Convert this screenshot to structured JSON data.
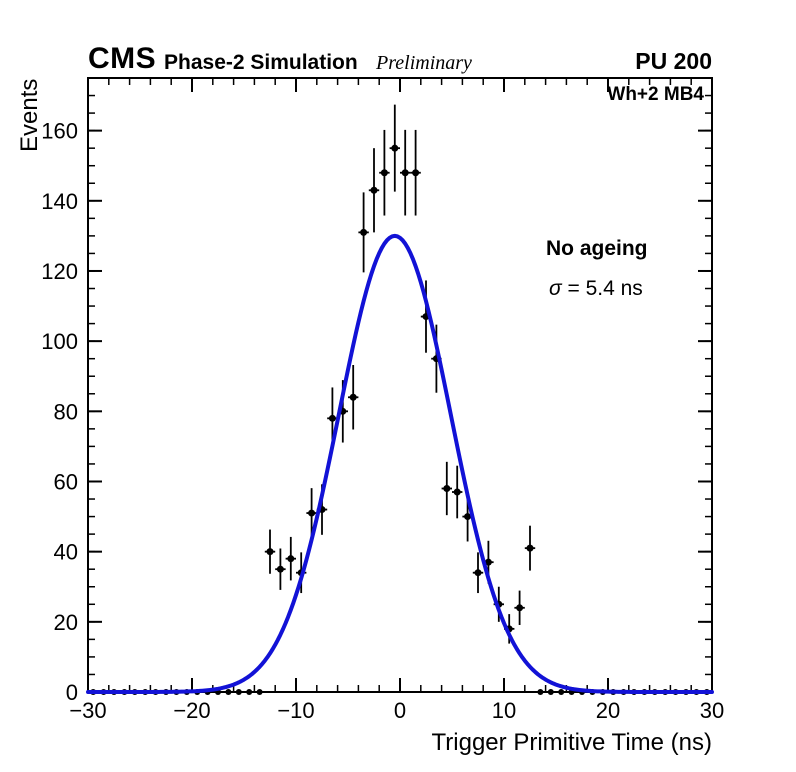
{
  "header": {
    "experiment": "CMS",
    "label": "Phase-2 Simulation",
    "sublabel": "Preliminary",
    "right_label": "PU 200"
  },
  "plot_label": "Wh+2 MB4",
  "annotation": {
    "line1": "No ageing",
    "sigma_symbol": "σ",
    "sigma_rest": " = 5.4 ns"
  },
  "chart_data": {
    "type": "scatter",
    "title": "",
    "xlabel": "Trigger Primitive Time (ns)",
    "ylabel": "Events",
    "xlim": [
      -30,
      30
    ],
    "ylim": [
      0,
      175
    ],
    "grid": false,
    "legend": "none",
    "x_tick_values": [
      -30,
      -20,
      -10,
      0,
      10,
      20,
      30
    ],
    "x_tick_labels": [
      "−30",
      "−20",
      "−10",
      "0",
      "10",
      "20",
      "30"
    ],
    "x_minor_step": 2,
    "y_tick_values": [
      0,
      20,
      40,
      60,
      80,
      100,
      120,
      140,
      160
    ],
    "y_tick_labels": [
      "0",
      "20",
      "40",
      "60",
      "80",
      "100",
      "120",
      "140",
      "160"
    ],
    "y_minor_step": 5,
    "frame_color": "#000000",
    "marker_color": "#000000",
    "marker_style": "filled-circle",
    "xerr": 0.5,
    "points": [
      {
        "x": -12.5,
        "y": 40,
        "ey": 6.3
      },
      {
        "x": -11.5,
        "y": 35,
        "ey": 5.9
      },
      {
        "x": -10.5,
        "y": 38,
        "ey": 6.2
      },
      {
        "x": -9.5,
        "y": 34,
        "ey": 5.8
      },
      {
        "x": -8.5,
        "y": 51,
        "ey": 7.1
      },
      {
        "x": -7.5,
        "y": 52,
        "ey": 7.2
      },
      {
        "x": -6.5,
        "y": 78,
        "ey": 8.8
      },
      {
        "x": -5.5,
        "y": 80,
        "ey": 8.9
      },
      {
        "x": -4.5,
        "y": 84,
        "ey": 9.2
      },
      {
        "x": -3.5,
        "y": 131,
        "ey": 11.4
      },
      {
        "x": -2.5,
        "y": 143,
        "ey": 12.0
      },
      {
        "x": -1.5,
        "y": 148,
        "ey": 12.2
      },
      {
        "x": -0.5,
        "y": 155,
        "ey": 12.4
      },
      {
        "x": 0.5,
        "y": 148,
        "ey": 12.2
      },
      {
        "x": 1.5,
        "y": 148,
        "ey": 12.2
      },
      {
        "x": 2.5,
        "y": 107,
        "ey": 10.3
      },
      {
        "x": 3.5,
        "y": 95,
        "ey": 9.7
      },
      {
        "x": 4.5,
        "y": 58,
        "ey": 7.6
      },
      {
        "x": 5.5,
        "y": 57,
        "ey": 7.5
      },
      {
        "x": 6.5,
        "y": 50,
        "ey": 7.1
      },
      {
        "x": 7.5,
        "y": 34,
        "ey": 5.8
      },
      {
        "x": 8.5,
        "y": 37,
        "ey": 6.1
      },
      {
        "x": 9.5,
        "y": 25,
        "ey": 5.0
      },
      {
        "x": 10.5,
        "y": 18,
        "ey": 4.2
      },
      {
        "x": 11.5,
        "y": 24,
        "ey": 4.9
      },
      {
        "x": 12.5,
        "y": 41,
        "ey": 6.4
      }
    ],
    "zero_points_x": [
      -29.5,
      -28.5,
      -27.5,
      -26.5,
      -25.5,
      -24.5,
      -23.5,
      -22.5,
      -21.5,
      -20.5,
      -19.5,
      -18.5,
      -17.5,
      -16.5,
      -15.5,
      -14.5,
      -13.5,
      13.5,
      14.5,
      15.5,
      16.5,
      17.5,
      18.5,
      19.5,
      20.5,
      21.5,
      22.5,
      23.5,
      24.5,
      25.5,
      26.5,
      27.5,
      28.5,
      29.5
    ],
    "fit": {
      "type": "gaussian",
      "amplitude": 130,
      "mean": -0.5,
      "sigma": 5.4,
      "color": "#1212d6",
      "line_width": 4
    }
  }
}
